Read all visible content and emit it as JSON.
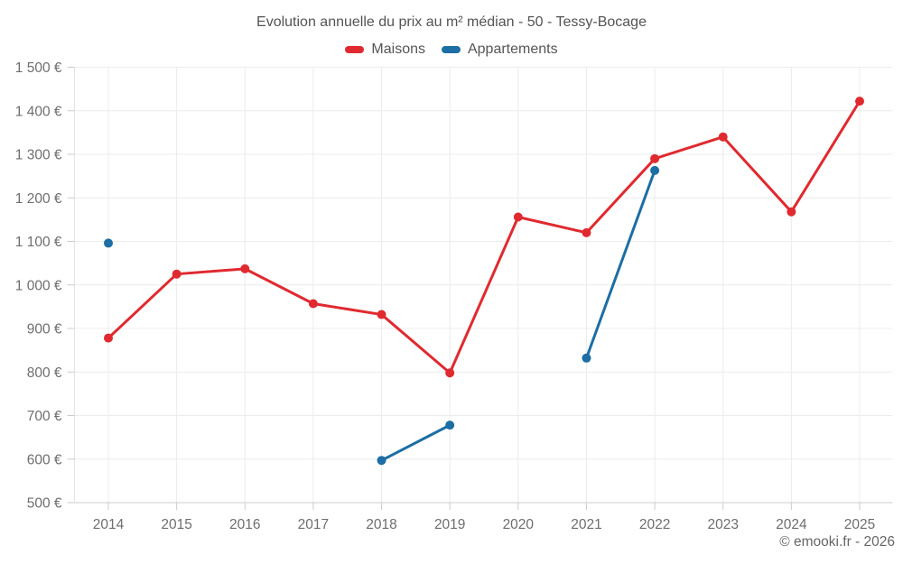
{
  "title": "Evolution annuelle du prix au m² médian - 50 - Tessy-Bocage",
  "watermark": "© emooki.fr - 2026",
  "legend": {
    "items": [
      {
        "label": "Maisons",
        "color": "#e02a30"
      },
      {
        "label": "Appartements",
        "color": "#1c6ea4"
      }
    ]
  },
  "colors": {
    "maisons": "#e02a30",
    "appartements": "#1c6ea4",
    "grid": "#ececec",
    "axis_line": "#cccccc",
    "axis_text": "#6e6e6e",
    "title_text": "#545454"
  },
  "chart_data": {
    "type": "line",
    "title": "Evolution annuelle du prix au m² médian - 50 - Tessy-Bocage",
    "categories": [
      "2014",
      "2015",
      "2016",
      "2017",
      "2018",
      "2019",
      "2020",
      "2021",
      "2022",
      "2023",
      "2024",
      "2025"
    ],
    "series": [
      {
        "name": "Maisons",
        "color": "#e02a30",
        "values": [
          878,
          1025,
          1037,
          957,
          932,
          798,
          1156,
          1120,
          1290,
          1340,
          1168,
          1422
        ]
      },
      {
        "name": "Appartements",
        "color": "#1c6ea4",
        "values": [
          1096,
          null,
          null,
          null,
          597,
          678,
          null,
          832,
          1263,
          null,
          null,
          null
        ]
      }
    ],
    "ylim": [
      500,
      1500
    ],
    "ytick_step": 100,
    "ytick_labels": [
      "500 €",
      "600 €",
      "700 €",
      "800 €",
      "900 €",
      "1 000 €",
      "1 100 €",
      "1 200 €",
      "1 300 €",
      "1 400 €",
      "1 500 €"
    ],
    "xlabel": "",
    "ylabel": "",
    "grid": true,
    "legend_position": "top"
  }
}
